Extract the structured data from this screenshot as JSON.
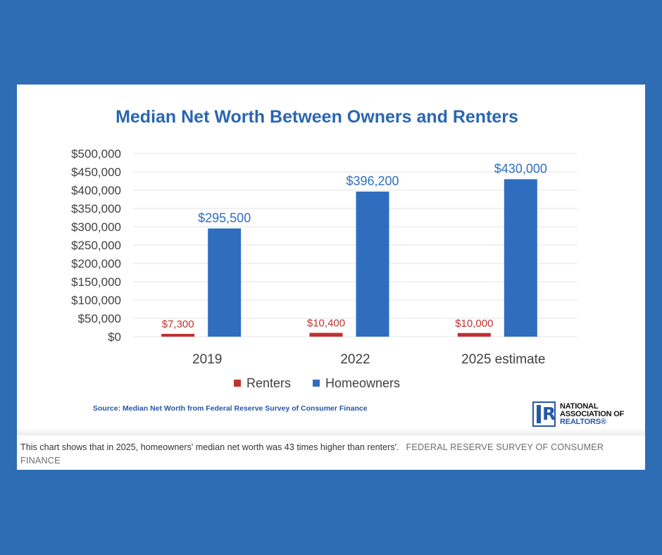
{
  "chart_data": {
    "type": "bar",
    "title": "Median Net Worth Between Owners and Renters",
    "categories": [
      "2019",
      "2022",
      "2025 estimate"
    ],
    "series": [
      {
        "name": "Renters",
        "color": "#c0312f",
        "values": [
          7300,
          10400,
          10000
        ],
        "labels": [
          "$7,300",
          "$10,400",
          "$10,000"
        ]
      },
      {
        "name": "Homeowners",
        "color": "#2f6ebf",
        "values": [
          295500,
          396200,
          430000
        ],
        "labels": [
          "$295,500",
          "$396,200",
          "$430,000"
        ]
      }
    ],
    "yticks": [
      "$0",
      "$50,000",
      "$100,000",
      "$150,000",
      "$200,000",
      "$250,000",
      "$300,000",
      "$350,000",
      "$400,000",
      "$450,000",
      "$500,000"
    ],
    "ylim": [
      0,
      500000
    ],
    "xlabel": "",
    "ylabel": "",
    "grid": true,
    "legend_position": "bottom",
    "source": "Source: Median Net Worth from Federal Reserve Survey of Consumer Finance"
  },
  "logo": {
    "letter": "R",
    "line1": "NATIONAL",
    "line2": "ASSOCIATION OF",
    "line3": "REALTORS",
    "reg": "®"
  },
  "caption": {
    "text": "This chart shows that in 2025, homeowners' median net worth was 43 times higher than renters'.",
    "credit": "FEDERAL RESERVE SURVEY OF CONSUMER FINANCE"
  },
  "colors": {
    "background": "#2e6db4",
    "title": "#2a66b0",
    "source": "#2657a8",
    "grid": "#e3e3e3",
    "axis_text": "#404040"
  }
}
